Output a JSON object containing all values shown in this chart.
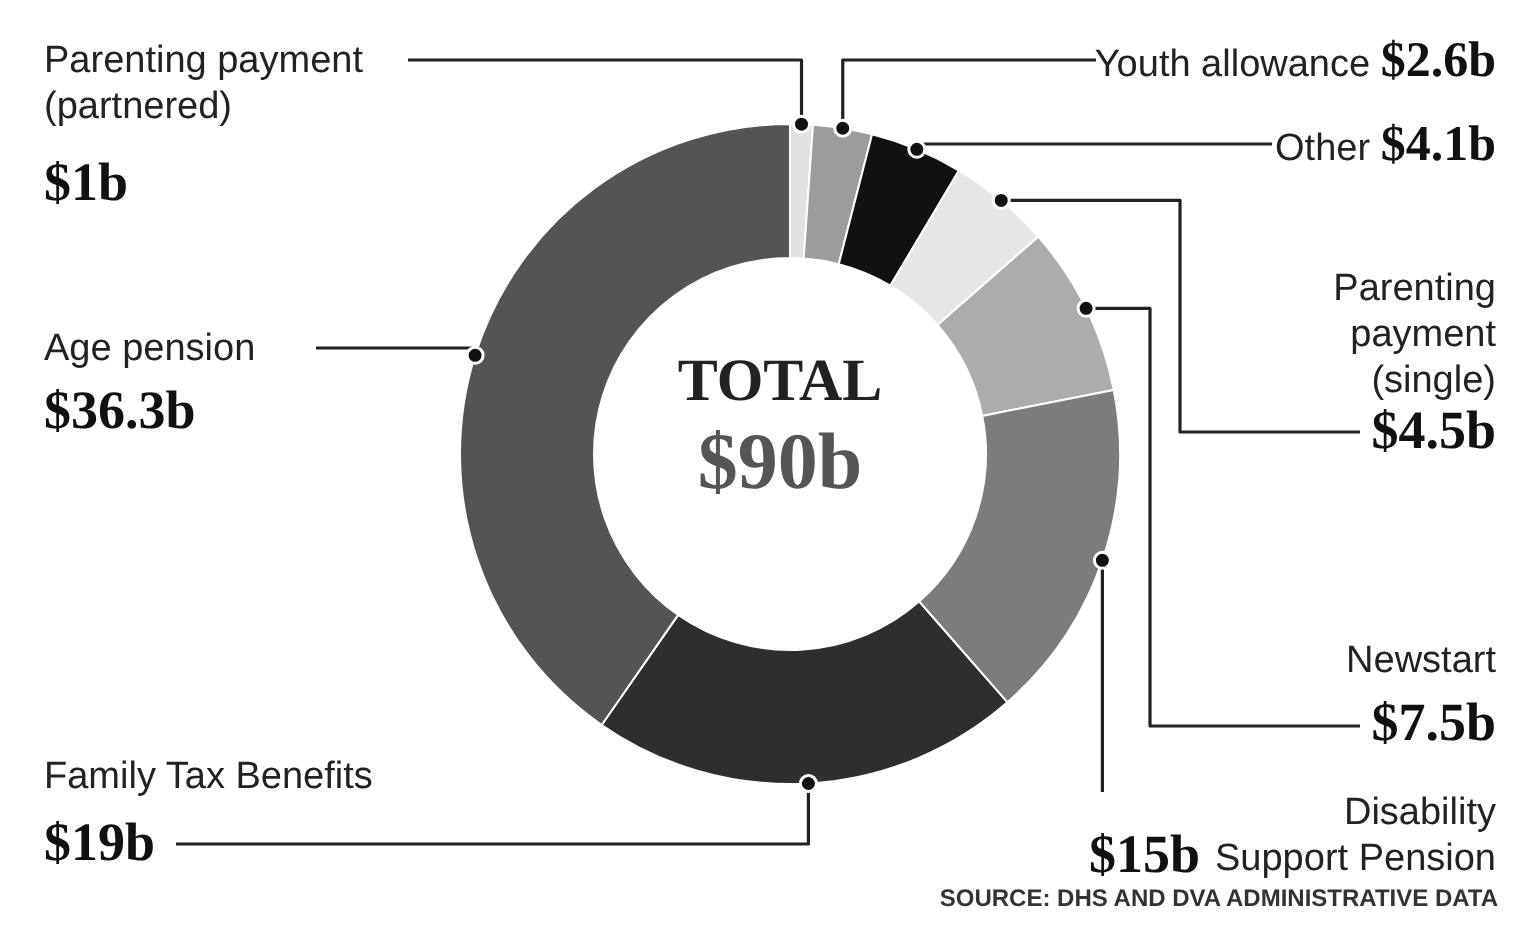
{
  "chart_data": {
    "type": "donut",
    "title": "TOTAL",
    "subtitle": "$90b",
    "categories": [
      "Parenting payment (partnered)",
      "Youth allowance",
      "Other",
      "Parenting payment (single)",
      "Newstart",
      "Disability Support Pension",
      "Family Tax Benefits",
      "Age pension"
    ],
    "values": [
      1,
      2.6,
      4.1,
      4.5,
      7.5,
      15,
      19,
      36.3
    ],
    "value_labels": [
      "$1b",
      "$2.6b",
      "$4.1b",
      "$4.5b",
      "$7.5b",
      "$15b",
      "$19b",
      "$36.3b"
    ],
    "colors": [
      "#e2e2e2",
      "#9c9c9c",
      "#111111",
      "#e6e6e6",
      "#acacac",
      "#7c7c7c",
      "#2e2e2e",
      "#545454"
    ],
    "annotations": [
      "SOURCE: DHS AND DVA ADMINISTRATIVE DATA"
    ]
  }
}
